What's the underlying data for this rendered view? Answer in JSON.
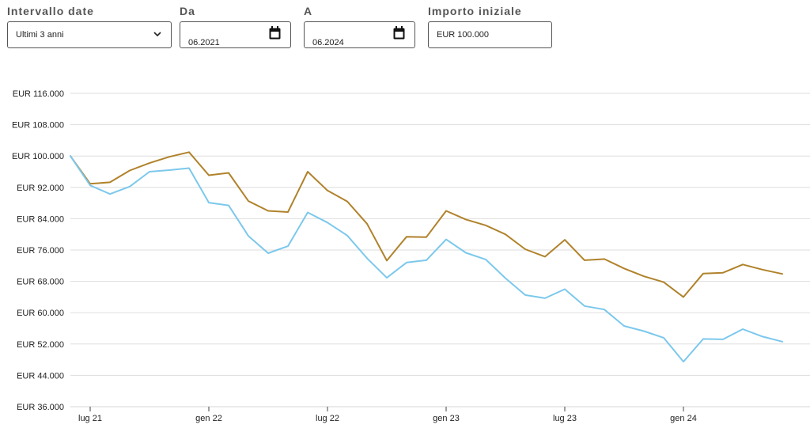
{
  "filters": {
    "range": {
      "label": "Intervallo date",
      "value": "Ultimi 3 anni"
    },
    "from": {
      "label": "Da",
      "value": "06.2021"
    },
    "to": {
      "label": "A",
      "value": "06.2024"
    },
    "amount": {
      "label": "Importo iniziale",
      "value": "EUR 100.000"
    }
  },
  "colors": {
    "series_gold": "#b0822a",
    "series_blue": "#7cc8ec",
    "grid": "#dddddd"
  },
  "icons": {
    "dropdown": "chevron-down-icon",
    "calendar": "calendar-icon"
  },
  "chart_data": {
    "type": "line",
    "title": "",
    "xlabel": "",
    "ylabel": "",
    "ylim": [
      36000,
      116000
    ],
    "y_ticks": [
      116000,
      108000,
      100000,
      92000,
      84000,
      76000,
      68000,
      60000,
      52000,
      44000,
      36000
    ],
    "y_tick_labels": [
      "EUR 116.000",
      "EUR 108.000",
      "EUR 100.000",
      "EUR 92.000",
      "EUR 84.000",
      "EUR 76.000",
      "EUR 68.000",
      "EUR 60.000",
      "EUR 52.000",
      "EUR 44.000",
      "EUR 36.000"
    ],
    "x": [
      "2021-06",
      "2021-07",
      "2021-08",
      "2021-09",
      "2021-10",
      "2021-11",
      "2021-12",
      "2022-01",
      "2022-02",
      "2022-03",
      "2022-04",
      "2022-05",
      "2022-06",
      "2022-07",
      "2022-08",
      "2022-09",
      "2022-10",
      "2022-11",
      "2022-12",
      "2023-01",
      "2023-02",
      "2023-03",
      "2023-04",
      "2023-05",
      "2023-06",
      "2023-07",
      "2023-08",
      "2023-09",
      "2023-10",
      "2023-11",
      "2023-12",
      "2024-01",
      "2024-02",
      "2024-03",
      "2024-04",
      "2024-05",
      "2024-06"
    ],
    "x_ticks": [
      "2021-07",
      "2022-01",
      "2022-07",
      "2023-01",
      "2023-07",
      "2024-01"
    ],
    "x_tick_labels": [
      "lug 21",
      "gen 22",
      "lug 22",
      "gen 23",
      "lug 23",
      "gen 24"
    ],
    "grid": true,
    "legend": false,
    "series": [
      {
        "color": "#b0822a",
        "values": [
          100000,
          92900,
          93300,
          96300,
          98200,
          99800,
          101000,
          95100,
          95700,
          88500,
          86000,
          85700,
          96000,
          91200,
          88400,
          82700,
          73300,
          79400,
          79300,
          86000,
          83800,
          82300,
          80000,
          76200,
          74300,
          78600,
          73400,
          73700,
          71300,
          69300,
          67800,
          64000,
          70000,
          70200,
          72300,
          71000,
          69900
        ]
      },
      {
        "color": "#7cc8ec",
        "values": [
          100000,
          92500,
          90300,
          92200,
          96000,
          96400,
          96900,
          88100,
          87400,
          79600,
          75200,
          77000,
          85600,
          83000,
          79700,
          73900,
          68900,
          72800,
          73400,
          78700,
          75300,
          73600,
          68800,
          64500,
          63700,
          66000,
          61700,
          60800,
          56600,
          55300,
          53600,
          47500,
          53300,
          53200,
          55800,
          53900,
          52600
        ]
      }
    ]
  }
}
